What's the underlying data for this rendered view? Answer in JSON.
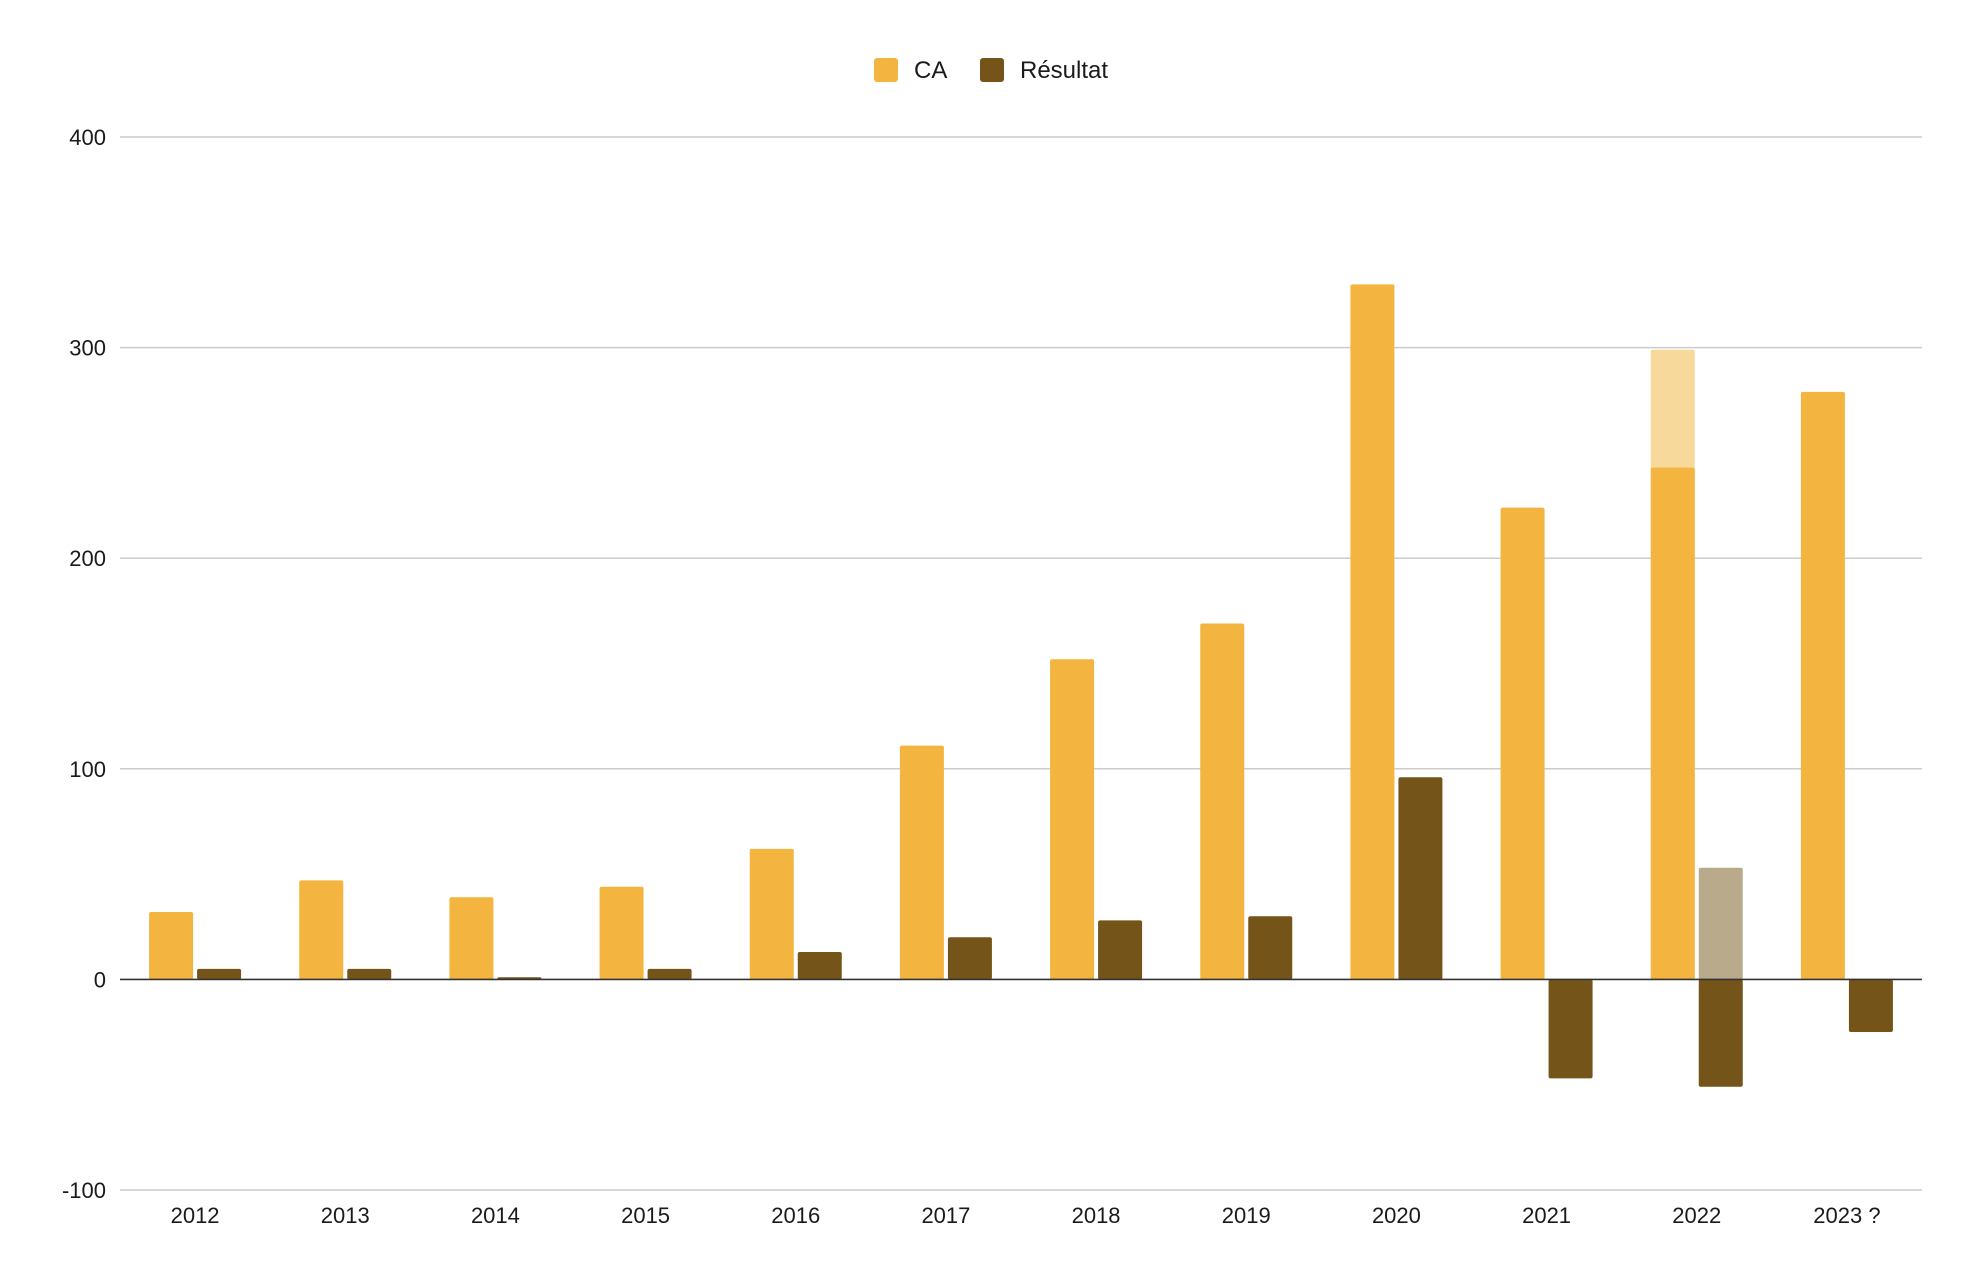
{
  "chart_data": {
    "type": "bar",
    "categories": [
      "2012",
      "2013",
      "2014",
      "2015",
      "2016",
      "2017",
      "2018",
      "2019",
      "2020",
      "2021",
      "2022",
      "2023 ?"
    ],
    "series": [
      {
        "name": "CA",
        "color": "#f3b53f",
        "values": [
          32,
          47,
          39,
          44,
          62,
          111,
          152,
          169,
          330,
          224,
          243,
          279
        ]
      },
      {
        "name": "Résultat",
        "color": "#745418",
        "values": [
          5,
          5,
          1,
          5,
          13,
          20,
          28,
          30,
          96,
          -47,
          -51,
          -25
        ]
      }
    ],
    "overlays": [
      {
        "series": "CA",
        "category": "2022",
        "value": 299,
        "color": "#f8d99c"
      },
      {
        "series": "Résultat",
        "category": "2022",
        "value": 53,
        "color": "#b8aa8a"
      }
    ],
    "yticks": [
      "400",
      "300",
      "200",
      "100",
      "0",
      "-100"
    ],
    "ylim": [
      -100,
      400
    ],
    "grid": true,
    "legend_position": "top-center",
    "title": "",
    "xlabel": "",
    "ylabel": ""
  }
}
